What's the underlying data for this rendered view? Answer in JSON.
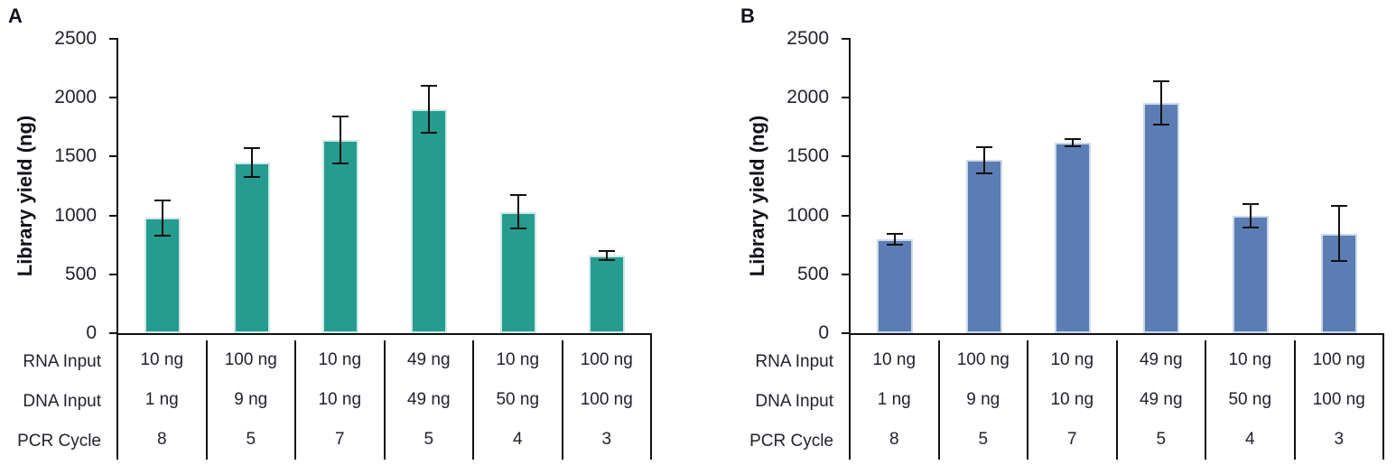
{
  "figure": {
    "background": "#ffffff",
    "text_color": "#22222c",
    "line_color": "#111111"
  },
  "chart_data": [
    {
      "type": "bar",
      "panel_label": "A",
      "title": "",
      "xlabel": "",
      "ylabel": "Library yield (ng)",
      "ylim": [
        0,
        2500
      ],
      "yticks": [
        "0",
        "500",
        "1000",
        "1500",
        "2000",
        "2500"
      ],
      "ytick_values": [
        0,
        500,
        1000,
        1500,
        2000,
        2500
      ],
      "grid": "off",
      "legend": "none",
      "bar_color": "#269b90",
      "bar_edge_color": "#cfe9e5",
      "error_bar_color": "#111111",
      "values": [
        980,
        1450,
        1640,
        1900,
        1030,
        660
      ],
      "errors": [
        150,
        120,
        200,
        200,
        140,
        40
      ],
      "categories": [
        "10 ng RNA / 1 ng DNA / 8 cycles",
        "100 ng RNA / 9 ng DNA / 5 cycles",
        "10 ng RNA / 10 ng DNA / 7 cycles",
        "49 ng RNA / 49 ng DNA / 5 cycles",
        "10 ng RNA / 50 ng DNA / 4 cycles",
        "100 ng RNA / 100 ng DNA / 3 cycles"
      ],
      "table": {
        "row_labels": [
          "RNA Input",
          "DNA Input",
          "PCR Cycle"
        ],
        "rows": [
          [
            "10 ng",
            "100 ng",
            "10 ng",
            "49 ng",
            "10 ng",
            "100 ng"
          ],
          [
            "1 ng",
            "9 ng",
            "10 ng",
            "49 ng",
            "50 ng",
            "100 ng"
          ],
          [
            "8",
            "5",
            "7",
            "5",
            "4",
            "3"
          ]
        ]
      }
    },
    {
      "type": "bar",
      "panel_label": "B",
      "title": "",
      "xlabel": "",
      "ylabel": "Library yield (ng)",
      "ylim": [
        0,
        2500
      ],
      "yticks": [
        "0",
        "500",
        "1000",
        "1500",
        "2000",
        "2500"
      ],
      "ytick_values": [
        0,
        500,
        1000,
        1500,
        2000,
        2500
      ],
      "grid": "off",
      "legend": "none",
      "bar_color": "#5b7db3",
      "bar_edge_color": "#ccd8eb",
      "error_bar_color": "#111111",
      "values": [
        800,
        1470,
        1615,
        1955,
        1000,
        845
      ],
      "errors": [
        45,
        110,
        30,
        185,
        100,
        235
      ],
      "categories": [
        "10 ng RNA / 1 ng DNA / 8 cycles",
        "100 ng RNA / 9 ng DNA / 5 cycles",
        "10 ng RNA / 10 ng DNA / 7 cycles",
        "49 ng RNA / 49 ng DNA / 5 cycles",
        "10 ng RNA / 50 ng DNA / 4 cycles",
        "100 ng RNA / 100 ng DNA / 3 cycles"
      ],
      "table": {
        "row_labels": [
          "RNA Input",
          "DNA Input",
          "PCR Cycle"
        ],
        "rows": [
          [
            "10 ng",
            "100 ng",
            "10 ng",
            "49 ng",
            "10 ng",
            "100 ng"
          ],
          [
            "1 ng",
            "9 ng",
            "10 ng",
            "49 ng",
            "50 ng",
            "100 ng"
          ],
          [
            "8",
            "5",
            "7",
            "5",
            "4",
            "3"
          ]
        ]
      }
    }
  ]
}
